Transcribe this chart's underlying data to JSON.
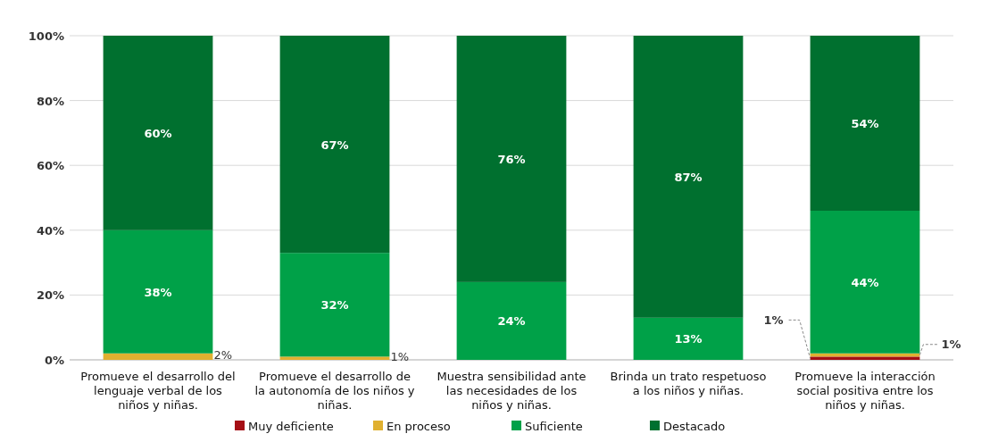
{
  "chart_data": {
    "type": "bar",
    "stacked": true,
    "categories": [
      "Promueve el desarrollo del lenguaje verbal de los niños y niñas.",
      "Promueve el desarrollo de la autonomía de los niños y niñas.",
      "Muestra sensibilidad ante las necesidades de los niños y niñas.",
      "Brinda un trato respetuoso a los niños y niñas.",
      "Promueve la interacción social positiva entre los niños y niñas."
    ],
    "series": [
      {
        "name": "Muy deficiente",
        "color": "#a50f15",
        "values": [
          null,
          null,
          null,
          null,
          1
        ],
        "value_labels": [
          null,
          null,
          null,
          null,
          "1%"
        ]
      },
      {
        "name": "En proceso",
        "color": "#e0b030",
        "values": [
          2,
          1,
          null,
          null,
          1
        ],
        "value_labels": [
          "2%",
          "1%",
          null,
          null,
          "1%"
        ]
      },
      {
        "name": "Suficiente",
        "color": "#00a148",
        "values": [
          38,
          32,
          24,
          13,
          44
        ],
        "value_labels": [
          "38%",
          "32%",
          "24%",
          "13%",
          "44%"
        ]
      },
      {
        "name": "Destacado",
        "color": "#00702f",
        "values": [
          60,
          67,
          76,
          87,
          54
        ],
        "value_labels": [
          "60%",
          "67%",
          "76%",
          "87%",
          "54%"
        ]
      }
    ],
    "ylim": [
      0,
      100
    ],
    "yticks": [
      {
        "value": 0,
        "label": "0%"
      },
      {
        "value": 20,
        "label": "20%"
      },
      {
        "value": 40,
        "label": "40%"
      },
      {
        "value": 60,
        "label": "60%"
      },
      {
        "value": 80,
        "label": "80%"
      },
      {
        "value": 100,
        "label": "100%"
      }
    ],
    "grid": "y",
    "legend": "bottom"
  }
}
